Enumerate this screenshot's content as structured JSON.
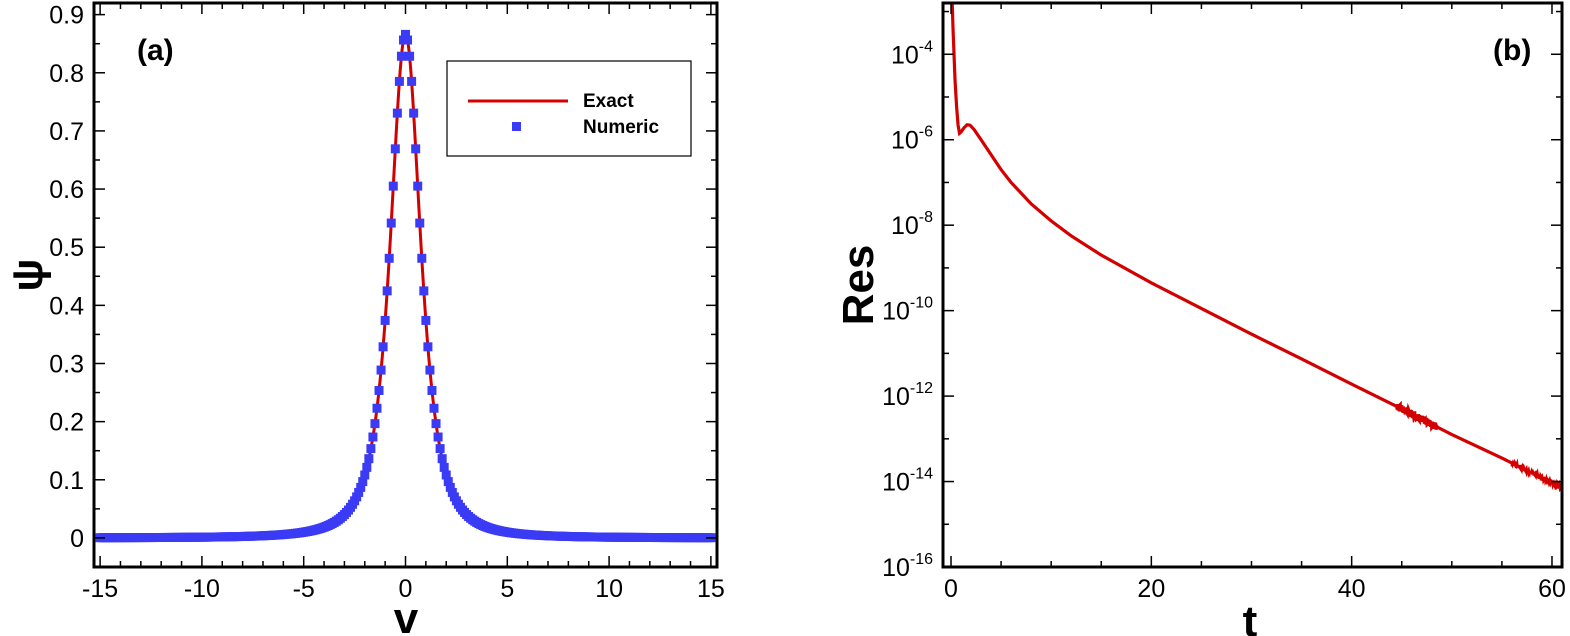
{
  "chart_data": [
    {
      "type": "line",
      "panel_label": "(a)",
      "title": "",
      "xlabel": "v",
      "ylabel": "ψ",
      "xlim": [
        -15.3,
        15.3
      ],
      "ylim": [
        -0.05,
        0.92
      ],
      "x_ticks": [
        -15,
        -10,
        -5,
        0,
        5,
        10,
        15
      ],
      "x_tick_labels": [
        "-15",
        "-10",
        "-5",
        "0",
        "5",
        "10",
        "15"
      ],
      "y_ticks": [
        0,
        0.1,
        0.2,
        0.3,
        0.4,
        0.5,
        0.6,
        0.7,
        0.8,
        0.9
      ],
      "y_tick_labels": [
        "0",
        "0.1",
        "0.2",
        "0.3",
        "0.4",
        "0.5",
        "0.6",
        "0.7",
        "0.8",
        "0.9"
      ],
      "grid": false,
      "legend_position": "top-right",
      "series": [
        {
          "name": "Exact",
          "style": "line",
          "color": "#d40000",
          "formula": "0.866 / (1 + 0.75 * v^2)^1.5"
        },
        {
          "name": "Numeric",
          "style": "square-markers",
          "color": "#3b3bf5",
          "x_range": [
            -15,
            15
          ],
          "x_step": 0.1,
          "formula": "0.866 / (1 + 0.75 * v^2)^1.5"
        }
      ]
    },
    {
      "type": "line",
      "panel_label": "(b)",
      "title": "",
      "xlabel": "t",
      "ylabel": "Res",
      "xlim": [
        -0.8,
        61
      ],
      "ylim_log10": [
        -16,
        -2.8
      ],
      "yscale": "log",
      "x_ticks": [
        0,
        20,
        40,
        60
      ],
      "x_tick_labels": [
        "0",
        "20",
        "40",
        "60"
      ],
      "y_ticks_log10": [
        -16,
        -14,
        -12,
        -10,
        -8,
        -6,
        -4
      ],
      "y_tick_base": "10",
      "y_tick_exponents": [
        "-16",
        "-14",
        "-12",
        "-10",
        "-8",
        "-6",
        "-4"
      ],
      "grid": false,
      "series": [
        {
          "color": "#d40000",
          "points_log10": [
            [
              0.12,
              -2.8
            ],
            [
              0.2,
              -3.4
            ],
            [
              0.3,
              -4.0
            ],
            [
              0.4,
              -4.6
            ],
            [
              0.55,
              -5.2
            ],
            [
              0.7,
              -5.65
            ],
            [
              0.85,
              -5.85
            ],
            [
              1.0,
              -5.82
            ],
            [
              1.3,
              -5.72
            ],
            [
              1.6,
              -5.65
            ],
            [
              1.9,
              -5.66
            ],
            [
              2.3,
              -5.76
            ],
            [
              3.0,
              -6.0
            ],
            [
              4.0,
              -6.35
            ],
            [
              5.0,
              -6.7
            ],
            [
              6.0,
              -7.0
            ],
            [
              8.0,
              -7.5
            ],
            [
              10.0,
              -7.9
            ],
            [
              12.0,
              -8.25
            ],
            [
              15.0,
              -8.7
            ],
            [
              20.0,
              -9.35
            ],
            [
              25.0,
              -9.95
            ],
            [
              30.0,
              -10.55
            ],
            [
              35.0,
              -11.13
            ],
            [
              40.0,
              -11.72
            ],
            [
              45.0,
              -12.3
            ],
            [
              50.0,
              -12.9
            ],
            [
              55.0,
              -13.45
            ],
            [
              61.0,
              -14.15
            ]
          ],
          "noise_intervals": [
            [
              44.5,
              48.5,
              0.18
            ],
            [
              56.0,
              61.0,
              0.06
            ]
          ]
        }
      ]
    }
  ]
}
